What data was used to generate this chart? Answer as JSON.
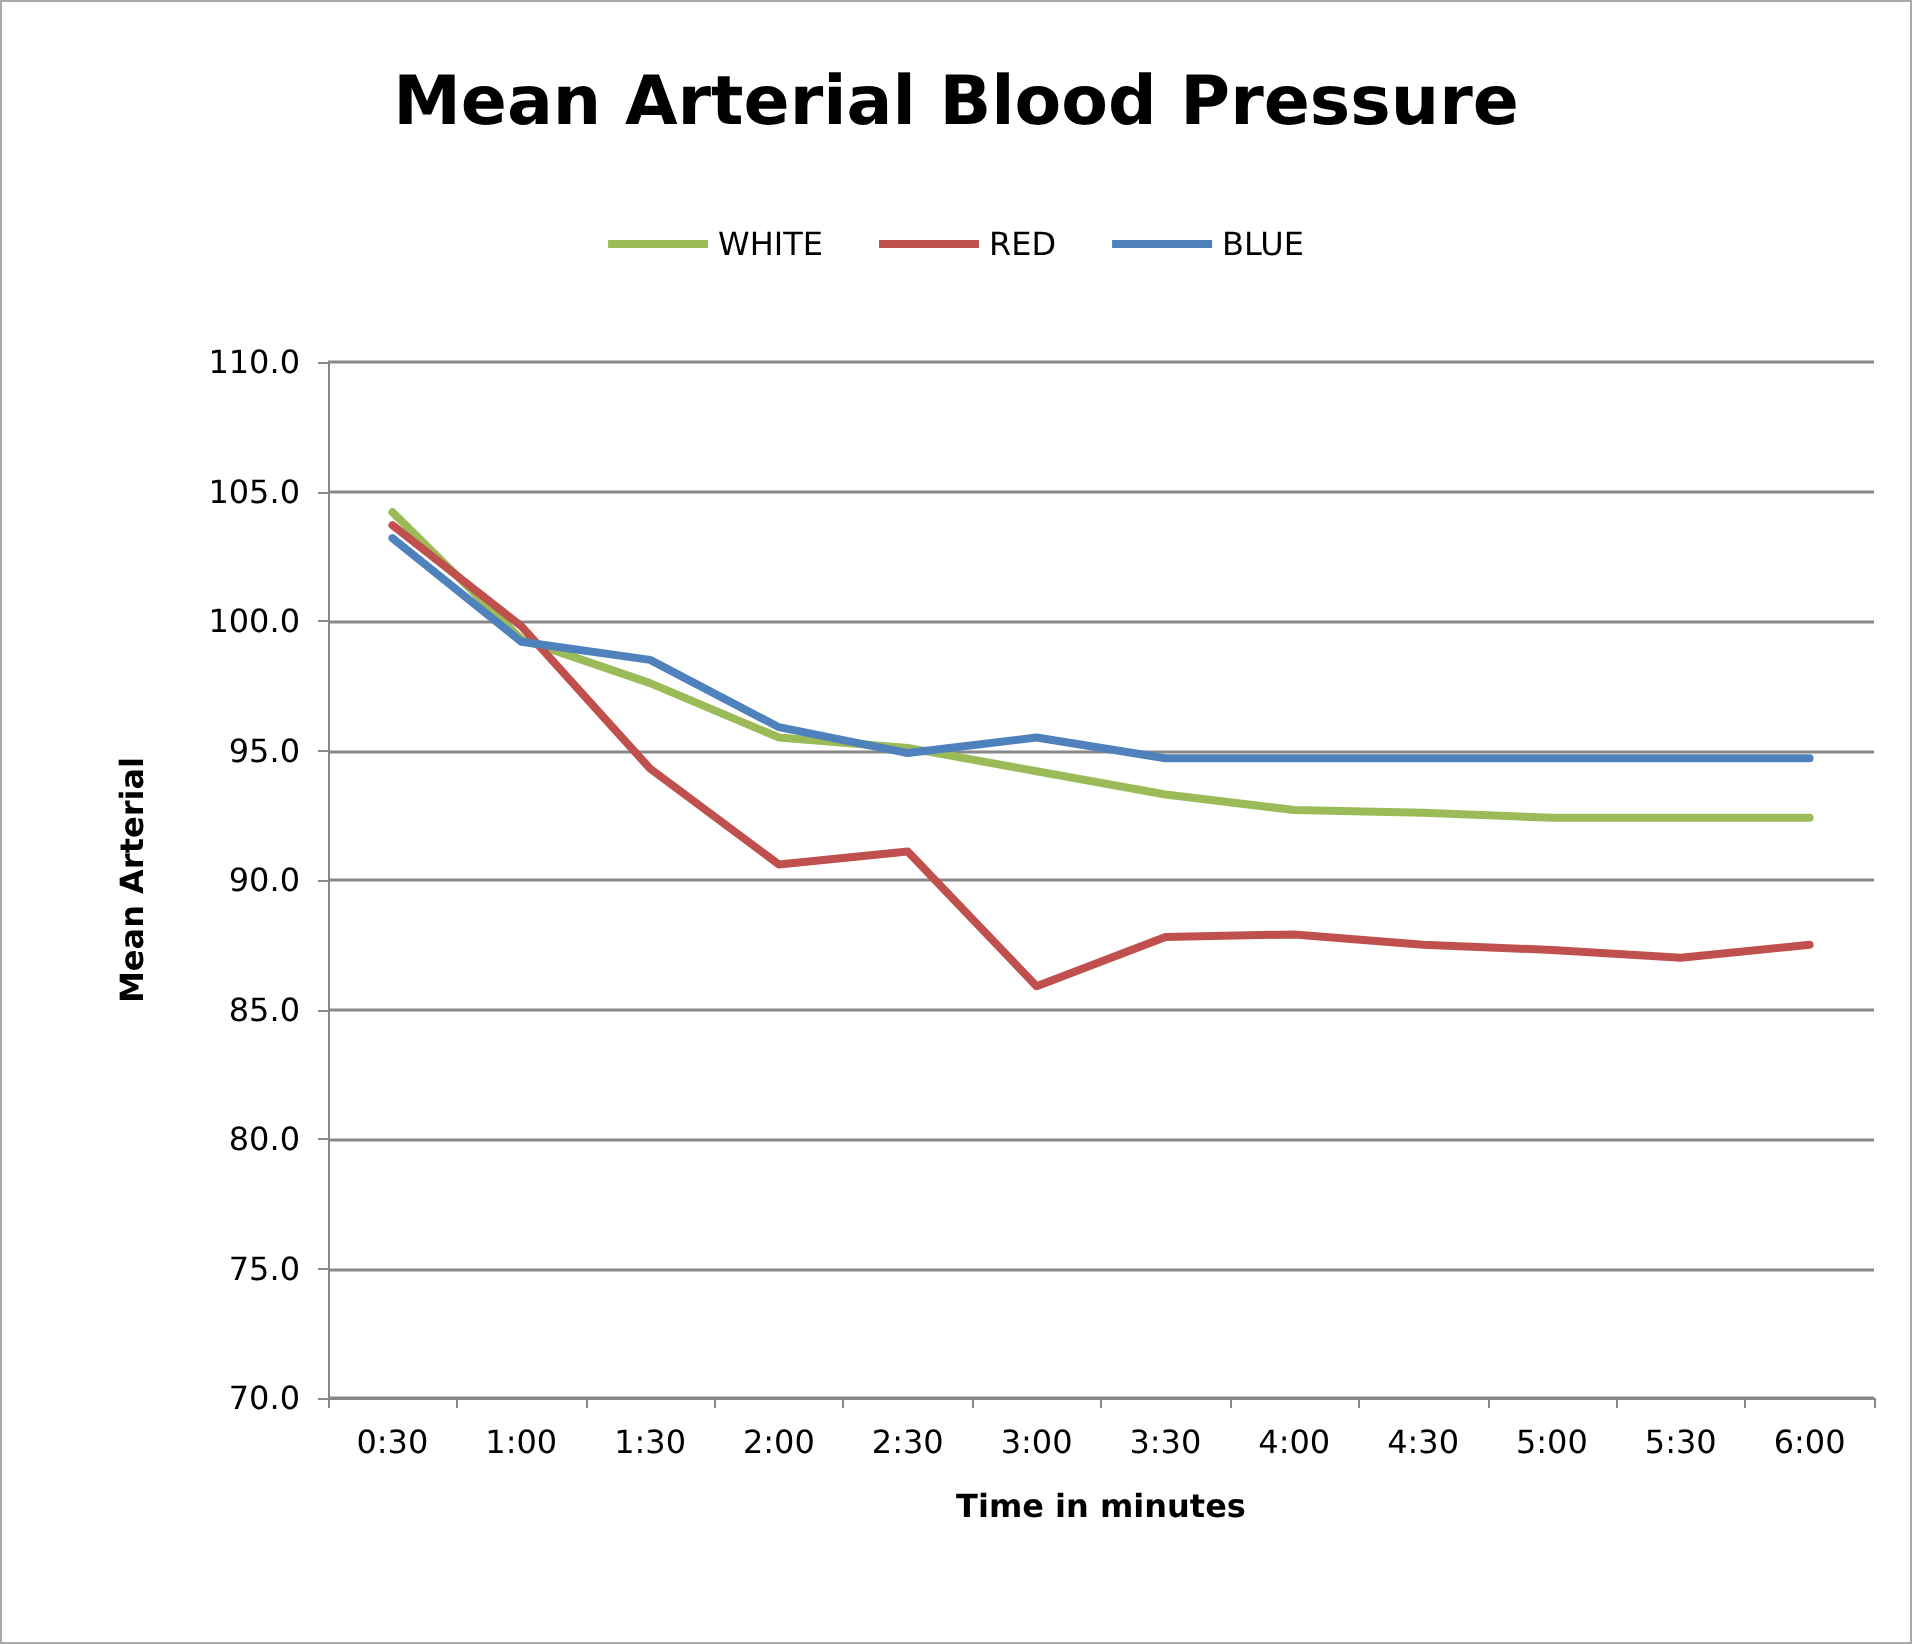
{
  "chart_data": {
    "type": "line",
    "title": "Mean Arterial Blood Pressure",
    "xlabel": "Time in minutes",
    "ylabel": "Mean Arterial",
    "categories": [
      "0:30",
      "1:00",
      "1:30",
      "2:00",
      "2:30",
      "3:00",
      "3:30",
      "4:00",
      "4:30",
      "5:00",
      "5:30",
      "6:00"
    ],
    "series": [
      {
        "name": "WHITE",
        "color": "#9bbb59",
        "values": [
          104.2,
          99.3,
          97.6,
          95.5,
          95.1,
          94.2,
          93.3,
          92.7,
          92.6,
          92.4,
          92.4,
          92.4
        ]
      },
      {
        "name": "RED",
        "color": "#c0504d",
        "values": [
          103.7,
          99.8,
          94.3,
          90.6,
          91.1,
          85.9,
          87.8,
          87.9,
          87.5,
          87.3,
          87.0,
          87.5
        ]
      },
      {
        "name": "BLUE",
        "color": "#4f81bd",
        "values": [
          103.2,
          99.2,
          98.5,
          95.9,
          94.9,
          95.5,
          94.7,
          94.7,
          94.7,
          94.7,
          94.7,
          94.7
        ]
      }
    ],
    "ylim": [
      70,
      110
    ],
    "yticks": [
      {
        "value": 70,
        "label": "70.0"
      },
      {
        "value": 75,
        "label": "75.0"
      },
      {
        "value": 80,
        "label": "80.0"
      },
      {
        "value": 85,
        "label": "85.0"
      },
      {
        "value": 90,
        "label": "90.0"
      },
      {
        "value": 95,
        "label": "95.0"
      },
      {
        "value": 100,
        "label": "100.0"
      },
      {
        "value": 105,
        "label": "105.0"
      },
      {
        "value": 110,
        "label": "110.0"
      }
    ],
    "grid": "y",
    "legend": "top",
    "marker": "none",
    "line_style": "solid"
  }
}
